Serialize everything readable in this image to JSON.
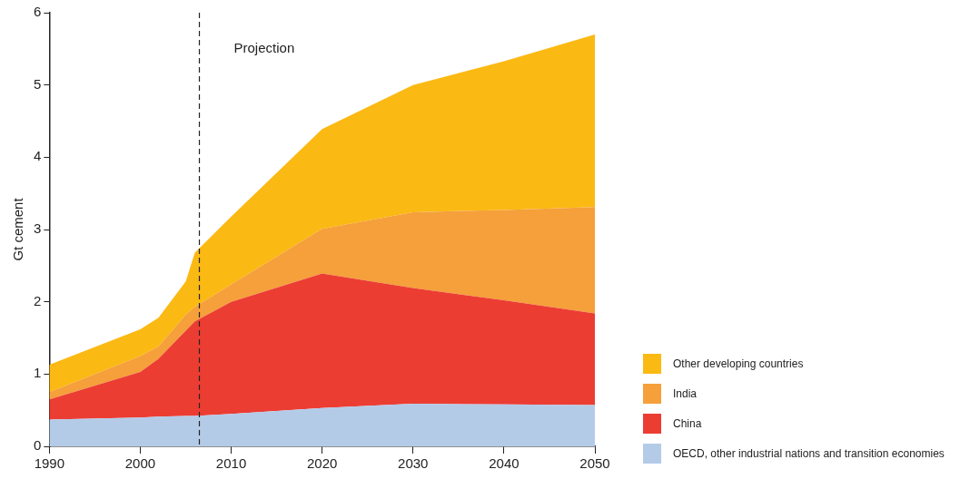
{
  "chart_data": {
    "type": "area",
    "stacked": true,
    "ylabel": "Gt cement",
    "x": [
      1990,
      2000,
      2002,
      2005,
      2006,
      2010,
      2020,
      2030,
      2040,
      2050
    ],
    "series": [
      {
        "name": "OECD, other industrial nations and transition economies",
        "color": "#b4cbe8",
        "values": [
          0.37,
          0.4,
          0.41,
          0.42,
          0.42,
          0.45,
          0.53,
          0.59,
          0.58,
          0.57
        ]
      },
      {
        "name": "China",
        "color": "#ec3d33",
        "values": [
          0.28,
          0.63,
          0.8,
          1.18,
          1.31,
          1.55,
          1.86,
          1.6,
          1.44,
          1.27
        ]
      },
      {
        "name": "India",
        "color": "#f5a03a",
        "values": [
          0.1,
          0.22,
          0.17,
          0.22,
          0.2,
          0.24,
          0.62,
          1.05,
          1.25,
          1.47
        ]
      },
      {
        "name": "Other developing countries",
        "color": "#fbb913",
        "values": [
          0.38,
          0.37,
          0.4,
          0.46,
          0.75,
          0.94,
          1.38,
          1.76,
          2.06,
          2.39
        ]
      }
    ],
    "xlim": [
      1990,
      2050
    ],
    "xticks": [
      1990,
      2000,
      2010,
      2020,
      2030,
      2040,
      2050
    ],
    "ylim": [
      0,
      6
    ],
    "yticks": [
      0,
      1,
      2,
      3,
      4,
      5,
      6
    ],
    "grid": false,
    "legend": "bottom right",
    "ref_lines": [
      {
        "axis": "x",
        "value": 2006.5,
        "color": "#222222",
        "line_style": "dashed"
      }
    ],
    "annotations": [
      "Projection"
    ]
  }
}
